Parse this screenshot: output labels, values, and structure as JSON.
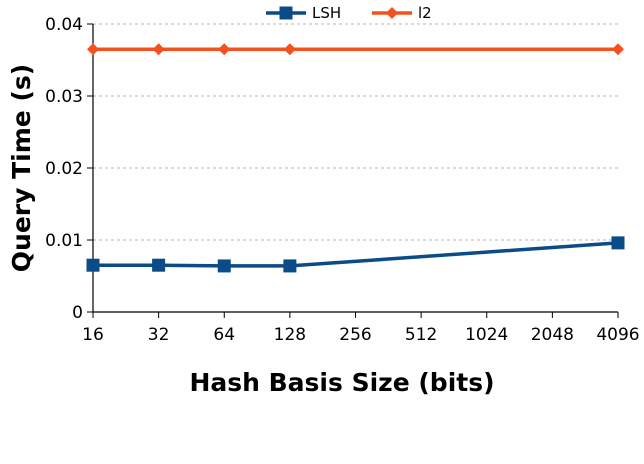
{
  "chart_data": {
    "type": "line",
    "xlabel": "Hash Basis Size (bits)",
    "ylabel": "Query Time (s)",
    "categories": [
      "16",
      "32",
      "64",
      "128",
      "256",
      "512",
      "1024",
      "2048",
      "4096"
    ],
    "ylim": [
      0,
      0.04
    ],
    "yticks": [
      0,
      0.01,
      0.02,
      0.03,
      0.04
    ],
    "ytick_labels": [
      "0",
      "0.01",
      "0.02",
      "0.03",
      "0.04"
    ],
    "grid": "horizontal-dashed",
    "legend_position": "top",
    "series": [
      {
        "name": "LSH",
        "color": "#0b4b87",
        "marker": "square",
        "x": [
          "16",
          "32",
          "64",
          "128",
          "4096"
        ],
        "values": [
          0.0065,
          0.0065,
          0.0064,
          0.0064,
          0.0096
        ]
      },
      {
        "name": "l2",
        "color": "#f4511e",
        "marker": "diamond",
        "x": [
          "16",
          "32",
          "64",
          "128",
          "4096"
        ],
        "values": [
          0.0365,
          0.0365,
          0.0365,
          0.0365,
          0.0365
        ]
      }
    ]
  }
}
